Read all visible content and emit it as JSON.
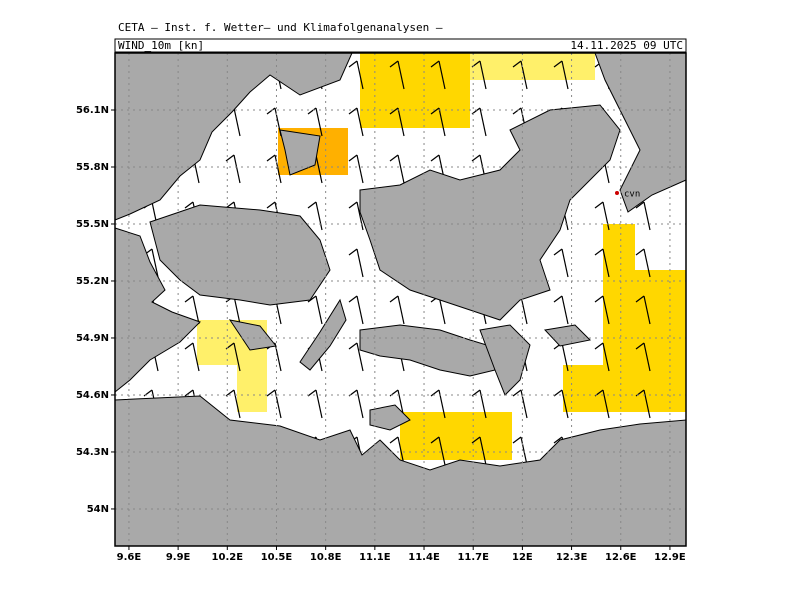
{
  "header": {
    "title": "CETA – Inst. f. Wetter– und Klimafolgenanalysen –",
    "field": "WIND_10m [kn]",
    "time": "14.11.2025 09 UTC"
  },
  "map": {
    "xlim": [
      9.515,
      12.998
    ],
    "ylim": [
      53.805,
      56.4
    ],
    "lon_ticks": [
      {
        "value": 9.6,
        "label": "9.6E"
      },
      {
        "value": 9.9,
        "label": "9.9E"
      },
      {
        "value": 10.2,
        "label": "10.2E"
      },
      {
        "value": 10.5,
        "label": "10.5E"
      },
      {
        "value": 10.8,
        "label": "10.8E"
      },
      {
        "value": 11.1,
        "label": "11.1E"
      },
      {
        "value": 11.4,
        "label": "11.4E"
      },
      {
        "value": 11.7,
        "label": "11.7E"
      },
      {
        "value": 12,
        "label": "12E"
      },
      {
        "value": 12.3,
        "label": "12.3E"
      },
      {
        "value": 12.6,
        "label": "12.6E"
      },
      {
        "value": 12.9,
        "label": "12.9E"
      }
    ],
    "lat_ticks": [
      {
        "value": 54,
        "label": "54N"
      },
      {
        "value": 54.3,
        "label": "54.3N"
      },
      {
        "value": 54.6,
        "label": "54.6N"
      },
      {
        "value": 54.9,
        "label": "54.9N"
      },
      {
        "value": 55.2,
        "label": "55.2N"
      },
      {
        "value": 55.5,
        "label": "55.5N"
      },
      {
        "value": 55.8,
        "label": "55.8N"
      },
      {
        "value": 56.1,
        "label": "56.1N"
      }
    ],
    "station": "cvn"
  }
}
